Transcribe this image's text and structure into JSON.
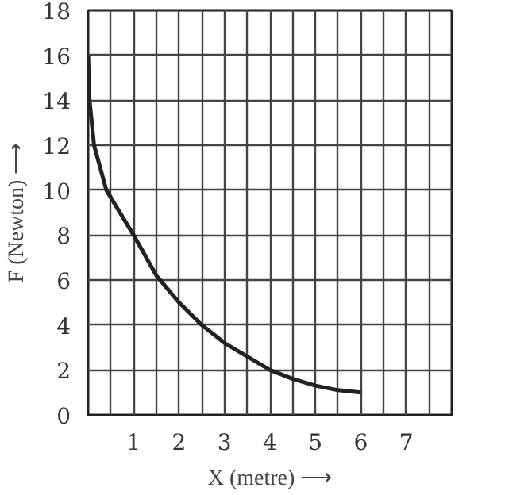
{
  "chart_data": {
    "type": "line",
    "xlabel": "X (metre) ⟶",
    "ylabel": "F (Newton) ⟶",
    "x": [
      0,
      0.03,
      0.13,
      0.4,
      1,
      1.5,
      2,
      2.5,
      3,
      3.5,
      4,
      4.5,
      5,
      5.5,
      6
    ],
    "series": [
      {
        "color": "#222222",
        "values": [
          16,
          14,
          12,
          10,
          8,
          6.2,
          5,
          4,
          3.2,
          2.6,
          2,
          1.6,
          1.3,
          1.1,
          1
        ]
      }
    ],
    "xlim": [
      0,
      8
    ],
    "ylim": [
      0,
      18
    ],
    "xticks": [
      {
        "value": 0,
        "label": null
      },
      {
        "value": 0.5,
        "label": null
      },
      1,
      {
        "value": 1.5,
        "label": null
      },
      2,
      {
        "value": 2.5,
        "label": null
      },
      3,
      {
        "value": 3.5,
        "label": null
      },
      4,
      {
        "value": 4.5,
        "label": null
      },
      5,
      {
        "value": 5.5,
        "label": null
      },
      6,
      {
        "value": 6.5,
        "label": null
      },
      7,
      {
        "value": 7.5,
        "label": null
      },
      {
        "value": 8,
        "label": null
      }
    ],
    "yticks": [
      0,
      2,
      4,
      6,
      8,
      10,
      12,
      14,
      16,
      18
    ],
    "grid": true,
    "marker": "none",
    "line_style": "solid"
  }
}
